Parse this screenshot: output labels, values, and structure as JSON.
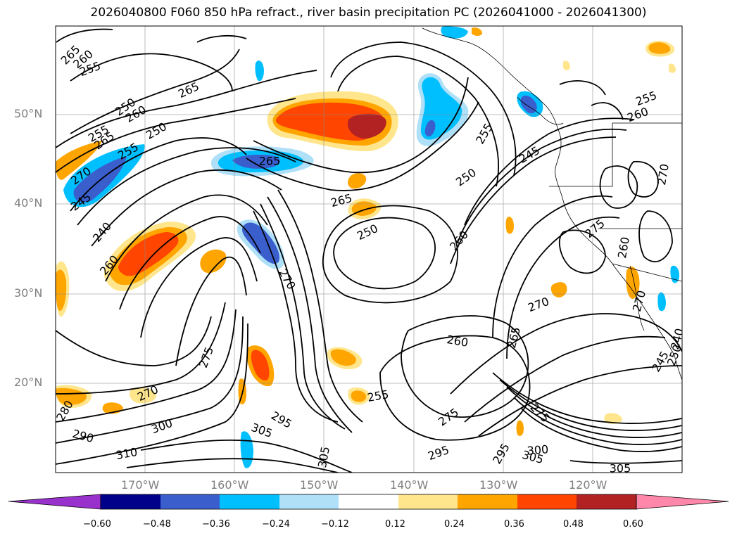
{
  "title": "2026040800 F060 850 hPa refract., river basin precipitation PC (2026041000 - 2026041300)",
  "latitude_labels": [
    "50°N",
    "40°N",
    "30°N",
    "20°N"
  ],
  "longitude_labels": [
    "170°W",
    "160°W",
    "150°W",
    "140°W",
    "130°W",
    "120°W"
  ],
  "colorbar": {
    "ticks": [
      "−0.60",
      "−0.48",
      "−0.36",
      "−0.24",
      "−0.12",
      "0.12",
      "0.24",
      "0.36",
      "0.48",
      "0.60"
    ],
    "colors": [
      "#9932cc",
      "#00008b",
      "#3a5fcd",
      "#00bfff",
      "#afe0f8",
      "#ffffff",
      "#ffe68c",
      "#ffa500",
      "#ff4500",
      "#b22222",
      "#ff88aa"
    ]
  },
  "contour_labels": [
    {
      "text": "265",
      "rot": -45
    },
    {
      "text": "260",
      "rot": -40
    },
    {
      "text": "255",
      "rot": -20
    },
    {
      "text": "265",
      "rot": -25
    },
    {
      "text": "250",
      "rot": -35
    },
    {
      "text": "260",
      "rot": -30
    },
    {
      "text": "255",
      "rot": -30
    },
    {
      "text": "265",
      "rot": -35
    },
    {
      "text": "250",
      "rot": -30
    },
    {
      "text": "255",
      "rot": -30
    },
    {
      "text": "270",
      "rot": -35
    },
    {
      "text": "245",
      "rot": -35
    },
    {
      "text": "240",
      "rot": -50
    },
    {
      "text": "260",
      "rot": -50
    },
    {
      "text": "265",
      "rot": 0
    },
    {
      "text": "265",
      "rot": -15
    },
    {
      "text": "250",
      "rot": -25
    },
    {
      "text": "270",
      "rot": 60
    },
    {
      "text": "255",
      "rot": -60
    },
    {
      "text": "250",
      "rot": -35
    },
    {
      "text": "245",
      "rot": -30
    },
    {
      "text": "260",
      "rot": -50
    },
    {
      "text": "255",
      "rot": -20
    },
    {
      "text": "260",
      "rot": -20
    },
    {
      "text": "270",
      "rot": -80
    },
    {
      "text": "275",
      "rot": -40
    },
    {
      "text": "260",
      "rot": -80
    },
    {
      "text": "270",
      "rot": -20
    },
    {
      "text": "265",
      "rot": -75
    },
    {
      "text": "260",
      "rot": 10
    },
    {
      "text": "275",
      "rot": -70
    },
    {
      "text": "270",
      "rot": -25
    },
    {
      "text": "280",
      "rot": -60
    },
    {
      "text": "290",
      "rot": 15
    },
    {
      "text": "300",
      "rot": -20
    },
    {
      "text": "310",
      "rot": -10
    },
    {
      "text": "305",
      "rot": 20
    },
    {
      "text": "295",
      "rot": 30
    },
    {
      "text": "305",
      "rot": -80
    },
    {
      "text": "255",
      "rot": -10
    },
    {
      "text": "275",
      "rot": -35
    },
    {
      "text": "295",
      "rot": -20
    },
    {
      "text": "295",
      "rot": -60
    },
    {
      "text": "300",
      "rot": -5
    },
    {
      "text": "305",
      "rot": 15
    },
    {
      "text": "275",
      "rot": 45
    },
    {
      "text": "305",
      "rot": 0
    },
    {
      "text": "245",
      "rot": -60
    },
    {
      "text": "240",
      "rot": -75
    },
    {
      "text": "250",
      "rot": -70
    },
    {
      "text": "270",
      "rot": -75
    }
  ]
}
